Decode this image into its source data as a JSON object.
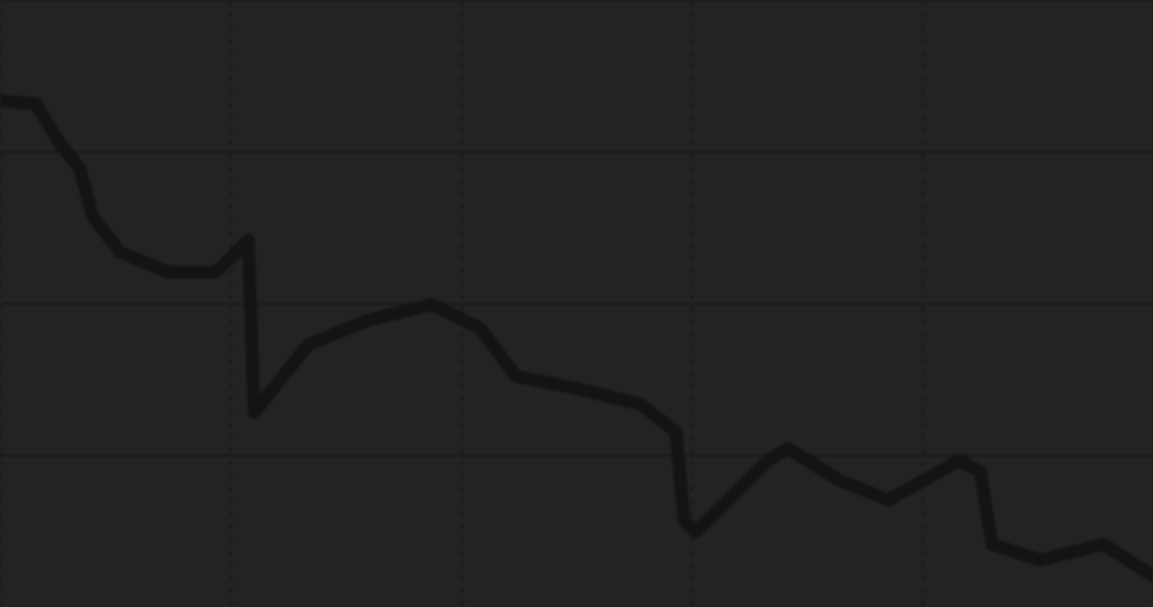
{
  "chart_data": {
    "type": "line",
    "x": [
      0,
      3.1,
      5.2,
      6.9,
      8.0,
      10.4,
      14.6,
      18.7,
      21.5,
      22.0,
      26.7,
      31.9,
      37.4,
      41.6,
      44.7,
      49.9,
      55.5,
      58.6,
      59.3,
      60.3,
      66.6,
      68.3,
      72.8,
      77.0,
      83.2,
      85.0,
      86.0,
      90.2,
      95.7,
      100
    ],
    "values": [
      83.5,
      82.9,
      76.3,
      72.3,
      64.4,
      58.5,
      55.2,
      55.2,
      60.5,
      32.1,
      43.3,
      47.3,
      49.9,
      46.0,
      38.1,
      36.1,
      33.5,
      28.9,
      14.4,
      12.4,
      24.2,
      26.2,
      20.9,
      17.7,
      24.2,
      22.3,
      10.4,
      7.8,
      10.4,
      5.1
    ],
    "color": "#141414",
    "line_style": "solid",
    "xlim": [
      0,
      100
    ],
    "xticks": [
      0,
      20,
      40,
      60,
      80,
      100
    ],
    "ylim": [
      0,
      100
    ],
    "yticks": [
      0,
      25,
      50,
      75,
      100
    ],
    "grid": true,
    "tick_labels": false
  }
}
